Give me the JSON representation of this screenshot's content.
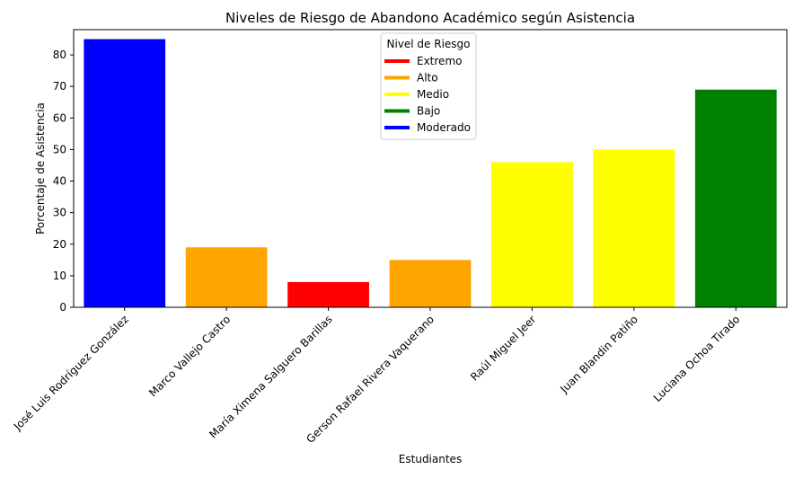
{
  "chart_data": {
    "type": "bar",
    "title": "Niveles de Riesgo de Abandono Académico según Asistencia",
    "xlabel": "Estudiantes",
    "ylabel": "Porcentaje de Asistencia",
    "ylim": [
      0,
      88
    ],
    "yticks": [
      0,
      10,
      20,
      30,
      40,
      50,
      60,
      70,
      80
    ],
    "grid": false,
    "categories": [
      "José Luis Rodríguez González",
      "Marco Vallejo Castro",
      "María Ximena Salguero Barillas",
      "Gerson Rafael Rivera Vaquerano",
      "Raúl Miguel Jeer",
      "Juan Blandin Patiño",
      "Luciana Ochoa Tirado"
    ],
    "values": [
      85,
      19,
      8,
      15,
      46,
      50,
      69
    ],
    "bar_colors": [
      "#0000ff",
      "#ffa500",
      "#ff0000",
      "#ffa500",
      "#ffff00",
      "#ffff00",
      "#008000"
    ],
    "legend": {
      "title": "Nivel de Riesgo",
      "placement": "top-center",
      "entries": [
        {
          "label": "Extremo",
          "color": "#ff0000"
        },
        {
          "label": "Alto",
          "color": "#ffa500"
        },
        {
          "label": "Medio",
          "color": "#ffff00"
        },
        {
          "label": "Bajo",
          "color": "#008000"
        },
        {
          "label": "Moderado",
          "color": "#0000ff"
        }
      ]
    }
  }
}
